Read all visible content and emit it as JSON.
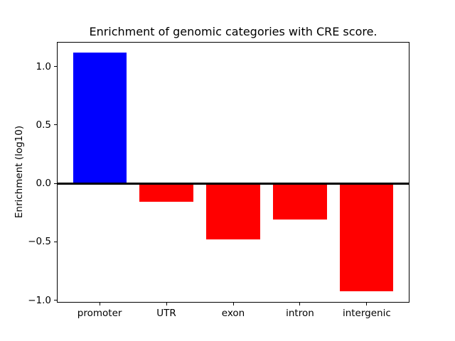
{
  "chart_data": {
    "type": "bar",
    "title": "Enrichment of genomic categories with CRE score.",
    "xlabel": "",
    "ylabel": "Enrichment (log10)",
    "categories": [
      "promoter",
      "UTR",
      "exon",
      "intron",
      "intergenic"
    ],
    "values": [
      1.12,
      -0.16,
      -0.48,
      -0.31,
      -0.92
    ],
    "bar_colors": [
      "#0000ff",
      "#ff0000",
      "#ff0000",
      "#ff0000",
      "#ff0000"
    ],
    "bar_width": 0.8,
    "y_ticks": [
      1.0,
      0.5,
      0.0,
      -0.5,
      -1.0
    ],
    "y_tick_labels": [
      "1.0",
      "0.5",
      "0.0",
      "−0.5",
      "−1.0"
    ],
    "ylim": [
      -1.02,
      1.21
    ],
    "xlim": [
      -0.64,
      4.64
    ],
    "grid": false,
    "zero_line": true,
    "legend_position": "none"
  },
  "colors": {
    "positive_bar": "#0000ff",
    "negative_bar": "#ff0000",
    "axis": "#000000",
    "background": "#ffffff"
  }
}
